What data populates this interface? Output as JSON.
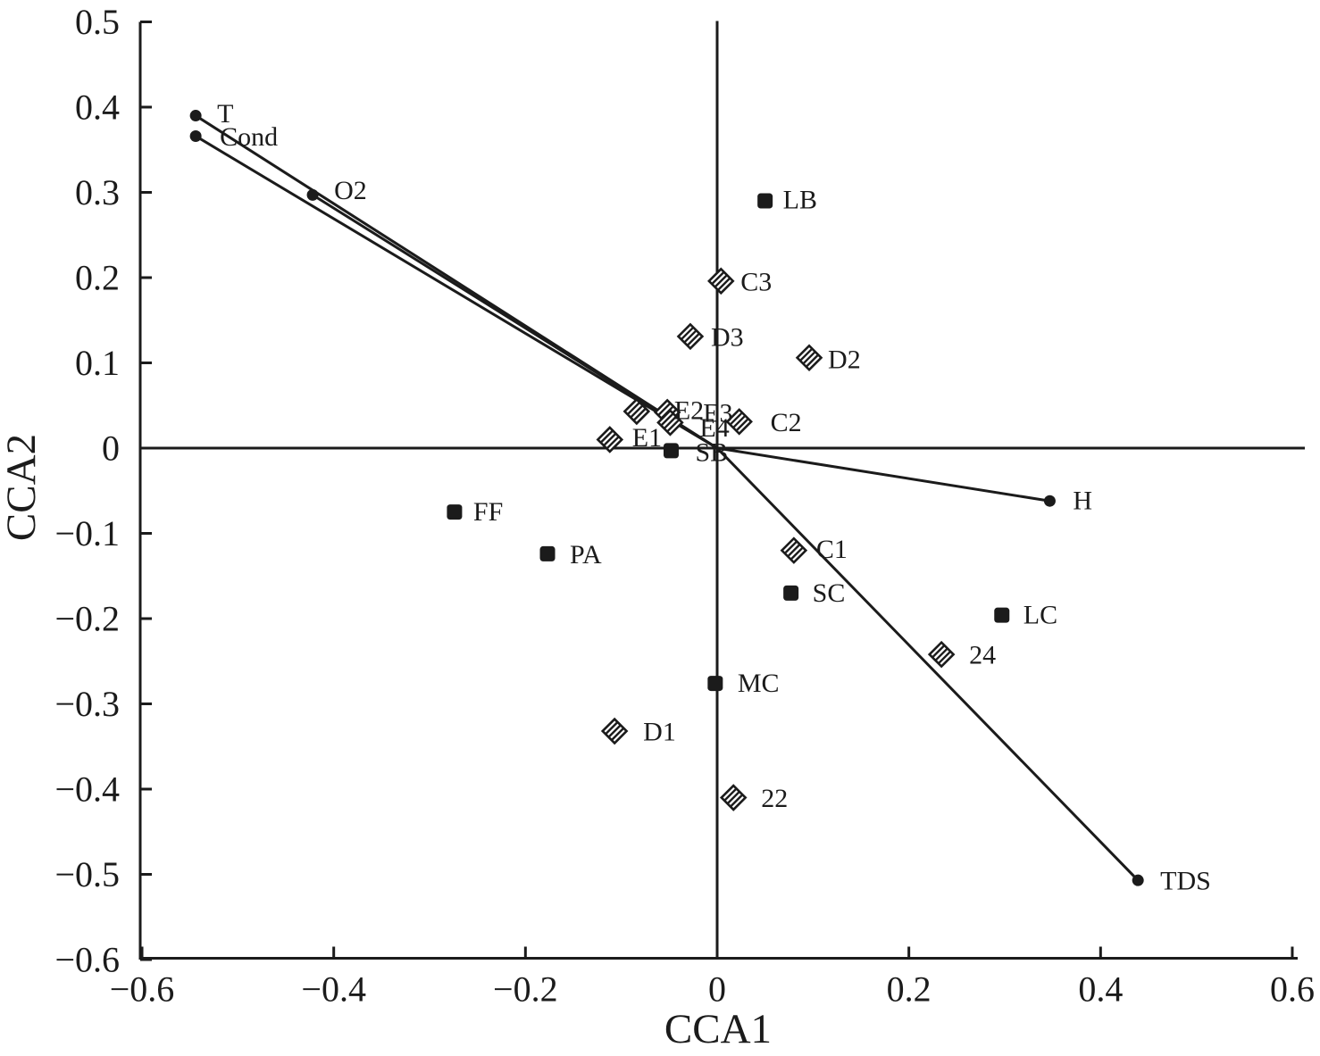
{
  "chart_data": {
    "type": "scatter",
    "title": "",
    "subtitle": "",
    "xlabel": "CCA1",
    "ylabel": "CCA2",
    "xlim": [
      -0.6,
      0.6
    ],
    "ylim": [
      -0.6,
      0.5
    ],
    "grid": false,
    "legend": false,
    "ink_color": "#1b1b1b",
    "x_ticks": [
      -0.6,
      -0.4,
      -0.2,
      0,
      0.2,
      0.4,
      0.6
    ],
    "x_tick_labels": [
      "−0.6",
      "−0.4",
      "−0.2",
      "0",
      "0.2",
      "0.4",
      "0.6"
    ],
    "y_ticks": [
      0.5,
      0.4,
      0.3,
      0.2,
      0.1,
      0,
      -0.1,
      -0.2,
      -0.3,
      -0.4,
      -0.5,
      -0.6
    ],
    "y_tick_labels": [
      "0.5",
      "0.4",
      "0.3",
      "0.2",
      "0.1",
      "0",
      "−0.1",
      "−0.2",
      "−0.3",
      "−0.4",
      "−0.5",
      "−0.6"
    ],
    "series": [
      {
        "name": "environmental-vectors",
        "marker": "circle",
        "line_from_origin": true,
        "points": [
          {
            "label": "T",
            "x": -0.544,
            "y": 0.39,
            "label_dx": 24,
            "label_dy": -2
          },
          {
            "label": "Cond",
            "x": -0.544,
            "y": 0.366,
            "label_dx": 27,
            "label_dy": 1
          },
          {
            "label": "O2",
            "x": -0.422,
            "y": 0.297,
            "label_dx": 24,
            "label_dy": -5
          },
          {
            "label": "H",
            "x": 0.347,
            "y": -0.062,
            "label_dx": 26,
            "label_dy": 0
          },
          {
            "label": "TDS",
            "x": 0.439,
            "y": -0.507,
            "label_dx": 25,
            "label_dy": 1
          }
        ]
      },
      {
        "name": "filled-square-sites",
        "marker": "square",
        "line_from_origin": false,
        "points": [
          {
            "label": "LB",
            "x": 0.05,
            "y": 0.29,
            "label_dx": 20,
            "label_dy": -1
          },
          {
            "label": "SB",
            "x": -0.048,
            "y": -0.003,
            "label_dx": 27,
            "label_dy": 2
          },
          {
            "label": "FF",
            "x": -0.274,
            "y": -0.075,
            "label_dx": 21,
            "label_dy": 0
          },
          {
            "label": "PA",
            "x": -0.177,
            "y": -0.124,
            "label_dx": 25,
            "label_dy": 1
          },
          {
            "label": "SC",
            "x": 0.077,
            "y": -0.17,
            "label_dx": 24,
            "label_dy": 0
          },
          {
            "label": "LC",
            "x": 0.297,
            "y": -0.196,
            "label_dx": 24,
            "label_dy": 0
          },
          {
            "label": "MC",
            "x": -0.002,
            "y": -0.276,
            "label_dx": 25,
            "label_dy": 0
          }
        ]
      },
      {
        "name": "hatched-diamond-samples",
        "marker": "diamond-hatched",
        "line_from_origin": false,
        "points": [
          {
            "label": "C3",
            "x": 0.004,
            "y": 0.196,
            "label_dx": 22,
            "label_dy": 1
          },
          {
            "label": "D3",
            "x": -0.028,
            "y": 0.131,
            "label_dx": 23,
            "label_dy": 1
          },
          {
            "label": "D2",
            "x": 0.096,
            "y": 0.106,
            "label_dx": 21,
            "label_dy": 2
          },
          {
            "label": "E2",
            "x": -0.084,
            "y": 0.043,
            "label_dx": 42,
            "label_dy": -1
          },
          {
            "label": "E3",
            "x": -0.052,
            "y": 0.042,
            "label_dx": 40,
            "label_dy": 1
          },
          {
            "label": "E4",
            "x": -0.049,
            "y": 0.03,
            "label_dx": 33,
            "label_dy": 6
          },
          {
            "label": "C2",
            "x": 0.023,
            "y": 0.031,
            "label_dx": 35,
            "label_dy": 1
          },
          {
            "label": "E1",
            "x": -0.112,
            "y": 0.01,
            "label_dx": 25,
            "label_dy": -2
          },
          {
            "label": "C1",
            "x": 0.08,
            "y": -0.12,
            "label_dx": 25,
            "label_dy": -1
          },
          {
            "label": "24",
            "x": 0.234,
            "y": -0.242,
            "label_dx": 31,
            "label_dy": 1
          },
          {
            "label": "D1",
            "x": -0.107,
            "y": -0.332,
            "label_dx": 32,
            "label_dy": 1
          },
          {
            "label": "22",
            "x": 0.017,
            "y": -0.41,
            "label_dx": 31,
            "label_dy": 1
          }
        ]
      }
    ]
  }
}
